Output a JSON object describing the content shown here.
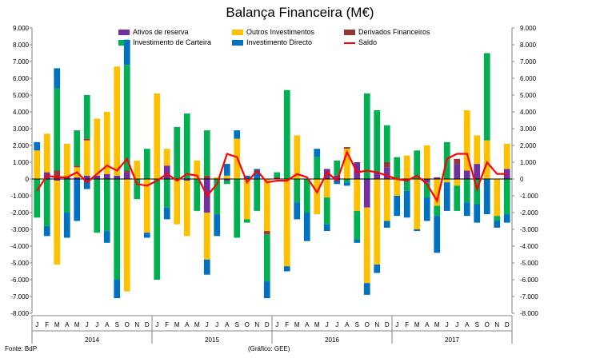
{
  "chart_data": {
    "type": "bar",
    "title": "Balança Financeira (M€)",
    "source_note": "Fonte: BdP",
    "credit_note": "(Gráfico: GEE)",
    "ylim": [
      -8000,
      9000
    ],
    "ytick_step": 1000,
    "ytick_labels": [
      "9.000",
      "8.000",
      "7.000",
      "6.000",
      "5.000",
      "4.000",
      "3.000",
      "2.000",
      "1.000",
      "0",
      "-1.000",
      "-2.000",
      "-3.000",
      "-4.000",
      "-5.000",
      "-6.000",
      "-7.000",
      "-8.000"
    ],
    "grid": false,
    "legend_position": "top",
    "years": [
      "2014",
      "2015",
      "2016",
      "2017"
    ],
    "months": [
      "J",
      "F",
      "M",
      "A",
      "M",
      "J",
      "J",
      "A",
      "S",
      "O",
      "N",
      "D"
    ],
    "series": [
      {
        "name": "Ativos de reserva",
        "color": "#7030A0",
        "values": [
          0,
          400,
          -100,
          100,
          100,
          200,
          200,
          300,
          200,
          400,
          0,
          0,
          0,
          800,
          0,
          -100,
          0,
          -2000,
          0,
          -100,
          0,
          0,
          0,
          0,
          0,
          0,
          0,
          0,
          0,
          600,
          200,
          0,
          1000,
          -1700,
          400,
          700,
          0,
          -100,
          0,
          -200,
          100,
          0,
          900,
          500,
          900,
          0,
          0,
          600,
          0,
          0,
          0,
          600,
          0,
          800,
          0,
          0,
          0,
          0,
          0,
          0
        ]
      },
      {
        "name": "Outros Investimentos",
        "color": "#FFC000",
        "values": [
          1700,
          2300,
          -5000,
          2000,
          600,
          2100,
          3400,
          3700,
          6500,
          -6700,
          1100,
          -3200,
          5100,
          1000,
          -2700,
          -3300,
          1100,
          -2800,
          100,
          200,
          2400,
          -2400,
          0,
          -3100,
          0,
          -5200,
          2600,
          0,
          -2100,
          -1100,
          0,
          1800,
          -1900,
          -4500,
          -5100,
          -2500,
          -1000,
          1400,
          -3000,
          2000,
          -1600,
          -200,
          -400,
          3600,
          1700,
          2300,
          -2200,
          1500,
          0,
          0,
          0,
          0,
          2900,
          0,
          0,
          0,
          1500,
          0,
          0,
          0
        ]
      },
      {
        "name": "Derivados Financeiros",
        "color": "#953735",
        "values": [
          0,
          0,
          500,
          0,
          100,
          100,
          0,
          0,
          0,
          100,
          0,
          0,
          0,
          0,
          0,
          0,
          0,
          200,
          0,
          0,
          0,
          0,
          0,
          -200,
          100,
          0,
          0,
          0,
          0,
          0,
          0,
          100,
          0,
          0,
          0,
          300,
          0,
          0,
          0,
          0,
          0,
          0,
          300,
          0,
          0,
          0,
          0,
          0,
          0,
          0,
          0,
          0,
          0,
          0,
          0,
          0,
          0,
          0,
          0,
          0
        ]
      },
      {
        "name": "Investimento de Carteira",
        "color": "#00B050",
        "values": [
          -2300,
          -2800,
          4900,
          -2000,
          2100,
          2600,
          -3200,
          -3100,
          -6000,
          6300,
          -1200,
          1800,
          -6000,
          -1700,
          3100,
          3900,
          -1900,
          2700,
          -2100,
          -200,
          -3500,
          -200,
          -1900,
          -2800,
          300,
          5300,
          -1400,
          -2000,
          1300,
          -1600,
          900,
          -200,
          -1700,
          5100,
          3700,
          2200,
          1300,
          -600,
          1700,
          -900,
          -600,
          2200,
          -1500,
          -1400,
          -1500,
          5200,
          -300,
          -2100,
          0,
          0,
          0,
          0,
          0,
          0,
          0,
          0,
          0,
          0,
          0,
          0
        ]
      },
      {
        "name": "Investimento Directo",
        "color": "#0070C0",
        "values": [
          500,
          -600,
          1200,
          -1500,
          -2500,
          -600,
          0,
          -700,
          -1100,
          1500,
          0,
          -300,
          0,
          -700,
          0,
          0,
          0,
          -900,
          -1300,
          700,
          500,
          200,
          600,
          -1000,
          0,
          -300,
          -1000,
          -1700,
          500,
          -400,
          -300,
          -200,
          -200,
          -700,
          -500,
          -400,
          -1200,
          -1600,
          -100,
          -1400,
          -2200,
          -1700,
          0,
          -800,
          -1100,
          -2100,
          -400,
          -500,
          0,
          0,
          0,
          0,
          0,
          0,
          0,
          0,
          0,
          0,
          0,
          0
        ]
      }
    ],
    "saldo": {
      "name": "Saldo",
      "color": "#FF0000",
      "values": [
        -700,
        200,
        100,
        100,
        400,
        -200,
        300,
        800,
        500,
        1200,
        -300,
        -400,
        -100,
        300,
        -100,
        300,
        200,
        -1000,
        -300,
        1500,
        1300,
        -200,
        500,
        -200,
        -100,
        -100,
        300,
        100,
        -800,
        400,
        -100,
        1600,
        400,
        500,
        400,
        200,
        0,
        -100,
        200,
        -300,
        -1300,
        1200,
        1500,
        1500,
        -600,
        1000,
        300,
        300,
        0,
        0,
        0,
        0,
        0,
        0,
        0,
        0,
        0,
        0,
        0,
        0
      ]
    }
  }
}
